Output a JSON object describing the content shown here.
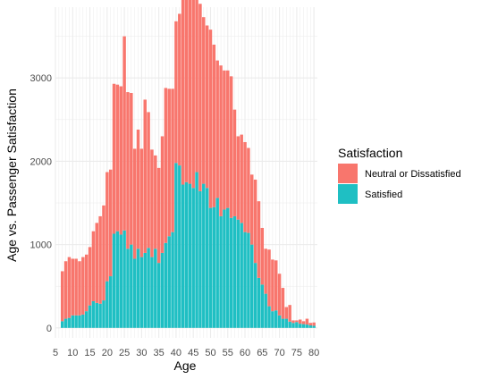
{
  "chart_data": {
    "type": "bar",
    "stacked": true,
    "xlabel": "Age",
    "ylabel": "Age vs. Passenger Satisfaction",
    "xlim": [
      5,
      81
    ],
    "ylim": [
      -120,
      3850
    ],
    "x_ticks": [
      5,
      10,
      15,
      20,
      25,
      30,
      35,
      40,
      45,
      50,
      55,
      60,
      65,
      70,
      75,
      80
    ],
    "y_ticks": [
      0,
      1000,
      2000,
      3000
    ],
    "grid": true,
    "legend_position": "right",
    "legend_title": "Satisfaction",
    "x": [
      7,
      8,
      9,
      10,
      11,
      12,
      13,
      14,
      15,
      16,
      17,
      18,
      19,
      20,
      21,
      22,
      23,
      24,
      25,
      26,
      27,
      28,
      29,
      30,
      31,
      32,
      33,
      34,
      35,
      36,
      37,
      38,
      39,
      40,
      41,
      42,
      43,
      44,
      45,
      46,
      47,
      48,
      49,
      50,
      51,
      52,
      53,
      54,
      55,
      56,
      57,
      58,
      59,
      60,
      61,
      62,
      63,
      64,
      65,
      66,
      67,
      68,
      69,
      70,
      71,
      72,
      73,
      74,
      75,
      76,
      77,
      78,
      79,
      80
    ],
    "series": [
      {
        "name": "Satisfied",
        "color": "#1fbfc3",
        "values": [
          80,
          110,
          120,
          150,
          150,
          150,
          160,
          200,
          270,
          320,
          300,
          290,
          330,
          560,
          620,
          1130,
          1160,
          1120,
          1170,
          950,
          1000,
          830,
          950,
          850,
          900,
          960,
          850,
          950,
          780,
          900,
          1020,
          1100,
          1150,
          1980,
          1950,
          1720,
          1750,
          1730,
          1680,
          1870,
          1640,
          1730,
          1680,
          1440,
          1450,
          1560,
          1340,
          1420,
          1440,
          1320,
          1340,
          1300,
          1260,
          1150,
          1140,
          1000,
          780,
          600,
          520,
          410,
          260,
          200,
          210,
          150,
          110,
          110,
          75,
          60,
          70,
          50,
          45,
          40,
          30,
          25
        ]
      },
      {
        "name": "Neutral or Dissatisfied",
        "color": "#f8766d",
        "values": [
          600,
          690,
          730,
          680,
          680,
          650,
          690,
          680,
          700,
          840,
          960,
          1050,
          1140,
          1310,
          1280,
          1800,
          1760,
          1780,
          2330,
          1880,
          1820,
          1320,
          1430,
          1300,
          1840,
          1630,
          1290,
          1120,
          1140,
          1400,
          1860,
          1770,
          1720,
          1700,
          1820,
          2340,
          2290,
          2410,
          2300,
          2080,
          2250,
          2000,
          1950,
          2140,
          1950,
          1650,
          1810,
          1670,
          1650,
          1700,
          1280,
          1000,
          1060,
          1080,
          1020,
          840,
          1000,
          920,
          680,
          540,
          680,
          620,
          600,
          500,
          370,
          140,
          200,
          30,
          20,
          50,
          35,
          70,
          30,
          40
        ]
      }
    ]
  }
}
